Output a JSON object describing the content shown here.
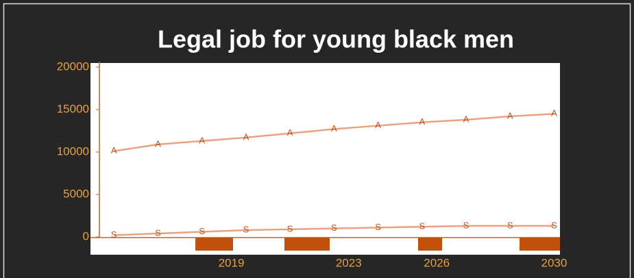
{
  "chart_data": {
    "type": "line",
    "title": "Legal job for young black men",
    "x": [
      2015,
      2016.5,
      2018,
      2019.5,
      2021,
      2022.5,
      2024,
      2025.5,
      2027,
      2028.5,
      2030
    ],
    "xlim": [
      2014.2,
      2030.2
    ],
    "xticks": [
      2019,
      2023,
      2026,
      2030
    ],
    "ylim": [
      0,
      20000
    ],
    "yticks": [
      0,
      5000,
      10000,
      15000,
      20000
    ],
    "series": [
      {
        "name": "A",
        "color": "#e8a27e",
        "values": [
          10100,
          10900,
          11300,
          11700,
          12200,
          12700,
          13100,
          13500,
          13800,
          14200,
          14500
        ]
      },
      {
        "name": "S",
        "color": "#e8a27e",
        "values": [
          200,
          400,
          600,
          800,
          900,
          1000,
          1100,
          1200,
          1300,
          1300,
          1300
        ]
      }
    ]
  }
}
